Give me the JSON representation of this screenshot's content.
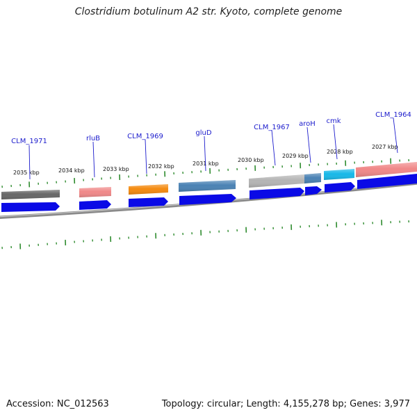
{
  "title": "Clostridium botulinum A2 str. Kyoto, complete genome",
  "footer": {
    "accession_label": "Accession:",
    "accession": "NC_012563",
    "topology_label": "Topology:",
    "topology": "circular",
    "length_label": "Length:",
    "length": "4,155,278 bp",
    "genes_label": "Genes:",
    "genes": "3,977"
  },
  "colors": {
    "backbone": "#8a8a8a",
    "ticks": "#2e8b2e",
    "cds_arrow": "#0a0ae6",
    "label": "#1a1acc"
  },
  "scale_labels": [
    "2035 kbp",
    "2034 kbp",
    "2033 kbp",
    "2032 kbp",
    "2031 kbp",
    "2030 kbp",
    "2029 kbp",
    "2028 kbp",
    "2027 kbp"
  ],
  "genes": [
    {
      "name": "CLM_1971",
      "feature_color": "#676767"
    },
    {
      "name": "rluB",
      "feature_color": "#f08888"
    },
    {
      "name": "CLM_1969",
      "feature_color": "#f48a10"
    },
    {
      "name": "gluD",
      "feature_color": "#4a82b4"
    },
    {
      "name": "CLM_1967",
      "feature_color": "#b4b4b4"
    },
    {
      "name": "aroH",
      "feature_color": "#4a82b4"
    },
    {
      "name": "cmk",
      "feature_color": "#18b8e8"
    },
    {
      "name": "CLM_1964",
      "feature_color": "#f08888"
    }
  ]
}
